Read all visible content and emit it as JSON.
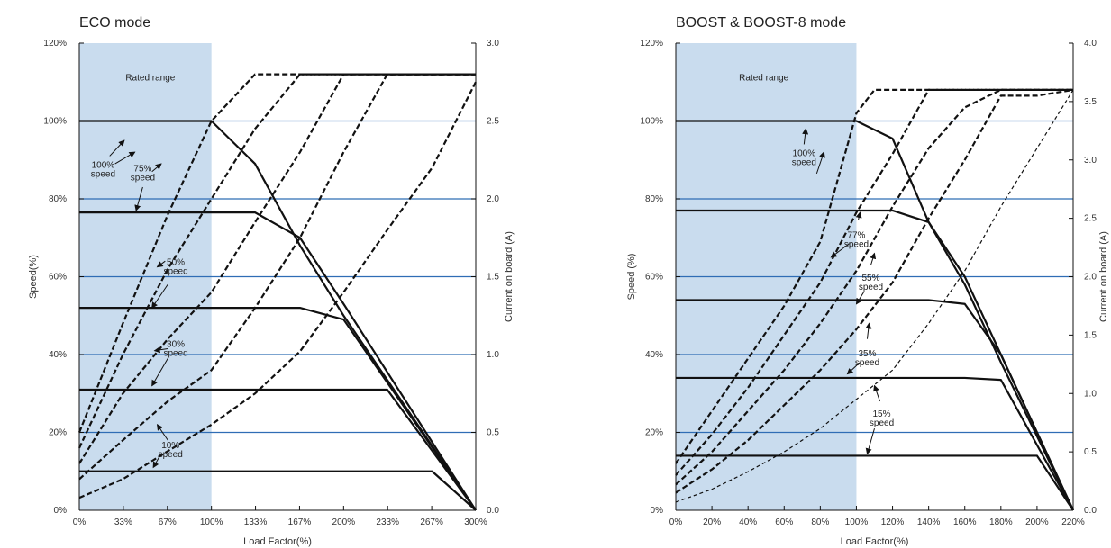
{
  "chart_data": [
    {
      "type": "line",
      "title": "ECO mode",
      "xlabel": "Load Factor(%)",
      "ylabel": "Speed(%)",
      "y2label": "Current on board (A)",
      "x_ticks": [
        "0%",
        "33%",
        "67%",
        "100%",
        "133%",
        "167%",
        "200%",
        "233%",
        "267%",
        "300%"
      ],
      "y_ticks": [
        "0%",
        "20%",
        "40%",
        "60%",
        "80%",
        "100%",
        "120%"
      ],
      "y2_ticks": [
        "0.0",
        "0.5",
        "1.0",
        "1.5",
        "2.0",
        "2.5",
        "3.0"
      ],
      "xlim": [
        0,
        300
      ],
      "ylim": [
        0,
        120
      ],
      "y2lim": [
        0,
        3.0
      ],
      "grid_y": true,
      "rated_range": {
        "label": "Rated range",
        "x": [
          0,
          100
        ]
      },
      "speed_curves": [
        {
          "points": [
            [
              0,
              100
            ],
            [
              100,
              100
            ],
            [
              133,
              89
            ],
            [
              167,
              68
            ],
            [
              200,
              50
            ],
            [
              300,
              0
            ]
          ]
        },
        {
          "points": [
            [
              0,
              76.5
            ],
            [
              133,
              76.5
            ],
            [
              167,
              70
            ],
            [
              200,
              53
            ],
            [
              300,
              0
            ]
          ]
        },
        {
          "points": [
            [
              0,
              52
            ],
            [
              167,
              52
            ],
            [
              200,
              49
            ],
            [
              300,
              0
            ]
          ]
        },
        {
          "points": [
            [
              0,
              31
            ],
            [
              233,
              31
            ],
            [
              300,
              0
            ]
          ]
        },
        {
          "points": [
            [
              0,
              10
            ],
            [
              267,
              10
            ],
            [
              300,
              0
            ]
          ]
        }
      ],
      "current_curves": [
        {
          "points": [
            [
              0,
              0.5
            ],
            [
              33,
              1.2
            ],
            [
              67,
              1.9
            ],
            [
              100,
              2.5
            ],
            [
              133,
              2.8
            ],
            [
              300,
              2.8
            ]
          ]
        },
        {
          "points": [
            [
              0,
              0.4
            ],
            [
              33,
              1.0
            ],
            [
              67,
              1.55
            ],
            [
              100,
              2.0
            ],
            [
              133,
              2.45
            ],
            [
              167,
              2.8
            ],
            [
              300,
              2.8
            ]
          ]
        },
        {
          "points": [
            [
              0,
              0.3
            ],
            [
              33,
              0.75
            ],
            [
              67,
              1.1
            ],
            [
              100,
              1.4
            ],
            [
              133,
              1.85
            ],
            [
              167,
              2.3
            ],
            [
              200,
              2.8
            ],
            [
              300,
              2.8
            ]
          ]
        },
        {
          "points": [
            [
              0,
              0.2
            ],
            [
              33,
              0.45
            ],
            [
              67,
              0.7
            ],
            [
              100,
              0.9
            ],
            [
              133,
              1.3
            ],
            [
              167,
              1.75
            ],
            [
              200,
              2.3
            ],
            [
              233,
              2.8
            ],
            [
              300,
              2.8
            ]
          ]
        },
        {
          "points": [
            [
              0,
              0.08
            ],
            [
              33,
              0.2
            ],
            [
              67,
              0.38
            ],
            [
              100,
              0.55
            ],
            [
              133,
              0.75
            ],
            [
              167,
              1.02
            ],
            [
              200,
              1.4
            ],
            [
              233,
              1.8
            ],
            [
              267,
              2.2
            ],
            [
              300,
              2.75
            ]
          ]
        }
      ],
      "annotations": [
        {
          "text": [
            "100%",
            "speed"
          ],
          "pos": [
            18,
            88
          ],
          "arrows": [
            [
              [
                23,
                91
              ],
              [
                34,
                95
              ]
            ],
            [
              [
                27,
                89
              ],
              [
                42,
                92
              ]
            ]
          ]
        },
        {
          "text": [
            "75%",
            "speed"
          ],
          "pos": [
            48,
            87
          ],
          "arrows": [
            [
              [
                55,
                87
              ],
              [
                62,
                89
              ]
            ],
            [
              [
                48,
                83
              ],
              [
                43,
                77
              ]
            ]
          ]
        },
        {
          "text": [
            "50%",
            "speed"
          ],
          "pos": [
            73,
            63
          ],
          "arrows": [
            [
              [
                65,
                64
              ],
              [
                59,
                62.5
              ]
            ],
            [
              [
                67,
                58
              ],
              [
                55,
                52
              ]
            ]
          ]
        },
        {
          "text": [
            "30%",
            "speed"
          ],
          "pos": [
            73,
            42
          ],
          "arrows": [
            [
              [
                67,
                41.5
              ],
              [
                57,
                41
              ]
            ],
            [
              [
                67,
                39
              ],
              [
                55,
                32
              ]
            ]
          ]
        },
        {
          "text": [
            "10%",
            "speed"
          ],
          "pos": [
            69,
            16
          ],
          "arrows": [
            [
              [
                67,
                18
              ],
              [
                59,
                22
              ]
            ],
            [
              [
                61,
                14
              ],
              [
                56,
                11
              ]
            ]
          ]
        }
      ]
    },
    {
      "type": "line",
      "title": "BOOST & BOOST-8 mode",
      "xlabel": "Load Factor(%)",
      "ylabel": "Speed (%)",
      "y2label": "Current on board (A)",
      "x_ticks": [
        "0%",
        "20%",
        "40%",
        "60%",
        "80%",
        "100%",
        "120%",
        "140%",
        "160%",
        "180%",
        "200%",
        "220%"
      ],
      "y_ticks": [
        "0%",
        "20%",
        "40%",
        "60%",
        "80%",
        "100%",
        "120%"
      ],
      "y2_ticks": [
        "0.0",
        "0.5",
        "1.0",
        "1.5",
        "2.0",
        "2.5",
        "3.0",
        "3.5",
        "4.0"
      ],
      "xlim": [
        0,
        220
      ],
      "ylim": [
        0,
        120
      ],
      "y2lim": [
        0,
        4.0
      ],
      "grid_y": true,
      "rated_range": {
        "label": "Rated range",
        "x": [
          0,
          100
        ]
      },
      "speed_curves": [
        {
          "points": [
            [
              0,
              100
            ],
            [
              100,
              100
            ],
            [
              120,
              95.5
            ],
            [
              140,
              74
            ],
            [
              160,
              58
            ],
            [
              180,
              38
            ],
            [
              220,
              0
            ]
          ]
        },
        {
          "points": [
            [
              0,
              77
            ],
            [
              120,
              77
            ],
            [
              140,
              74
            ],
            [
              160,
              60
            ],
            [
              180,
              40
            ],
            [
              220,
              0
            ]
          ]
        },
        {
          "points": [
            [
              0,
              54
            ],
            [
              140,
              54
            ],
            [
              160,
              53
            ],
            [
              180,
              40
            ],
            [
              220,
              0
            ]
          ]
        },
        {
          "points": [
            [
              0,
              34
            ],
            [
              160,
              34
            ],
            [
              180,
              33.5
            ],
            [
              220,
              0
            ]
          ]
        },
        {
          "points": [
            [
              0,
              14
            ],
            [
              200,
              14
            ],
            [
              220,
              0
            ]
          ]
        }
      ],
      "current_curves": [
        {
          "dash": "heavy",
          "points": [
            [
              0,
              0.4
            ],
            [
              20,
              0.85
            ],
            [
              40,
              1.3
            ],
            [
              60,
              1.75
            ],
            [
              80,
              2.3
            ],
            [
              100,
              3.4
            ],
            [
              110,
              3.6
            ],
            [
              220,
              3.6
            ]
          ]
        },
        {
          "dash": "heavy",
          "points": [
            [
              0,
              0.3
            ],
            [
              20,
              0.65
            ],
            [
              40,
              1.05
            ],
            [
              60,
              1.5
            ],
            [
              80,
              1.95
            ],
            [
              100,
              2.55
            ],
            [
              120,
              3.05
            ],
            [
              140,
              3.6
            ],
            [
              220,
              3.6
            ]
          ]
        },
        {
          "dash": "heavy",
          "points": [
            [
              0,
              0.22
            ],
            [
              20,
              0.5
            ],
            [
              40,
              0.85
            ],
            [
              60,
              1.2
            ],
            [
              80,
              1.6
            ],
            [
              100,
              2.05
            ],
            [
              120,
              2.6
            ],
            [
              140,
              3.1
            ],
            [
              160,
              3.45
            ],
            [
              180,
              3.6
            ],
            [
              220,
              3.6
            ]
          ]
        },
        {
          "dash": "heavy",
          "points": [
            [
              0,
              0.15
            ],
            [
              20,
              0.35
            ],
            [
              40,
              0.6
            ],
            [
              60,
              0.9
            ],
            [
              80,
              1.2
            ],
            [
              100,
              1.55
            ],
            [
              120,
              1.95
            ],
            [
              140,
              2.5
            ],
            [
              160,
              3.0
            ],
            [
              180,
              3.55
            ],
            [
              200,
              3.55
            ],
            [
              220,
              3.6
            ]
          ]
        },
        {
          "dash": "light",
          "points": [
            [
              0,
              0.07
            ],
            [
              20,
              0.18
            ],
            [
              40,
              0.33
            ],
            [
              60,
              0.5
            ],
            [
              80,
              0.7
            ],
            [
              100,
              0.95
            ],
            [
              120,
              1.2
            ],
            [
              140,
              1.6
            ],
            [
              160,
              2.05
            ],
            [
              180,
              2.6
            ],
            [
              200,
              3.1
            ],
            [
              220,
              3.6
            ]
          ]
        }
      ],
      "annotations": [
        {
          "text": [
            "100%",
            "speed"
          ],
          "pos": [
            71,
            91
          ],
          "arrows": [
            [
              [
                71,
                94
              ],
              [
                72,
                98
              ]
            ],
            [
              [
                78,
                86.5
              ],
              [
                82,
                92
              ]
            ]
          ]
        },
        {
          "text": [
            "77%",
            "speed"
          ],
          "pos": [
            100,
            70
          ],
          "arrows": [
            [
              [
                101,
                74.5
              ],
              [
                102,
                76.5
              ]
            ],
            [
              [
                96,
                68.5
              ],
              [
                86,
                65
              ]
            ]
          ]
        },
        {
          "text": [
            "55%",
            "speed"
          ],
          "pos": [
            108,
            59
          ],
          "arrows": [
            [
              [
                108,
                63
              ],
              [
                110,
                66
              ]
            ],
            [
              [
                104,
                56
              ],
              [
                100,
                53
              ]
            ]
          ]
        },
        {
          "text": [
            "35%",
            "speed"
          ],
          "pos": [
            106,
            39.5
          ],
          "arrows": [
            [
              [
                106,
                44
              ],
              [
                107,
                48
              ]
            ],
            [
              [
                102,
                38
              ],
              [
                95,
                35
              ]
            ]
          ]
        },
        {
          "text": [
            "15%",
            "speed"
          ],
          "pos": [
            114,
            24
          ],
          "arrows": [
            [
              [
                113,
                28
              ],
              [
                110,
                32
              ]
            ],
            [
              [
                110,
                21
              ],
              [
                106,
                14.5
              ]
            ]
          ]
        }
      ]
    }
  ]
}
